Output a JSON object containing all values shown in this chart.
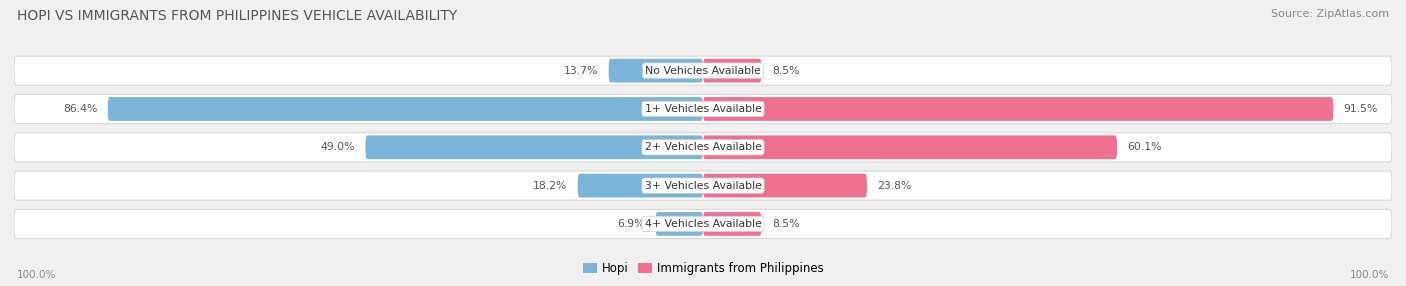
{
  "title": "HOPI VS IMMIGRANTS FROM PHILIPPINES VEHICLE AVAILABILITY",
  "source": "Source: ZipAtlas.com",
  "categories": [
    "No Vehicles Available",
    "1+ Vehicles Available",
    "2+ Vehicles Available",
    "3+ Vehicles Available",
    "4+ Vehicles Available"
  ],
  "hopi_values": [
    13.7,
    86.4,
    49.0,
    18.2,
    6.9
  ],
  "phil_values": [
    8.5,
    91.5,
    60.1,
    23.8,
    8.5
  ],
  "hopi_color": "#7ab4d8",
  "phil_color": "#f07090",
  "bg_color": "#f0f0f0",
  "row_bg_color": "#ffffff",
  "row_border_color": "#d8d8d8",
  "label_100_left": "100.0%",
  "label_100_right": "100.0%",
  "legend_hopi": "Hopi",
  "legend_phil": "Immigrants from Philippines",
  "title_fontsize": 10,
  "source_fontsize": 8,
  "max_val": 100.0
}
